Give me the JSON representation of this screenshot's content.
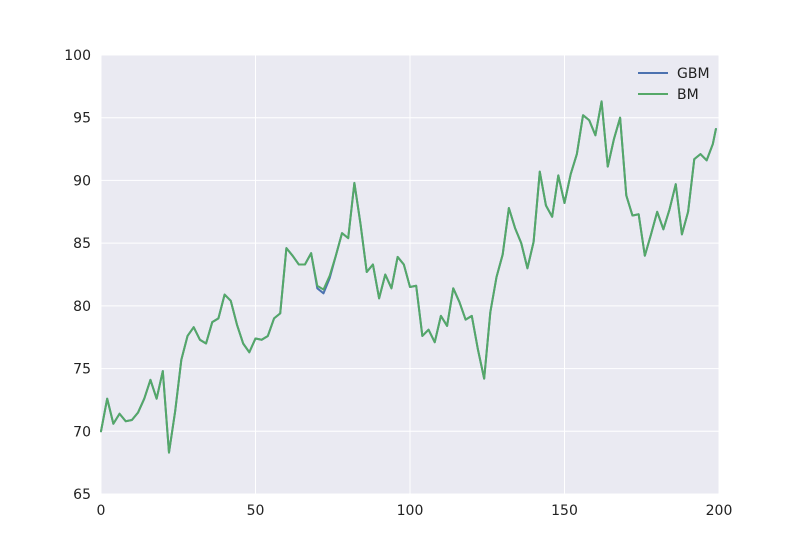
{
  "chart_data": {
    "type": "line",
    "title": "",
    "xlabel": "",
    "ylabel": "",
    "xlim": [
      0,
      200
    ],
    "ylim": [
      65,
      100
    ],
    "xticks": [
      0,
      50,
      100,
      150,
      200
    ],
    "yticks": [
      65,
      70,
      75,
      80,
      85,
      90,
      95,
      100
    ],
    "xtick_labels": [
      "0",
      "50",
      "100",
      "150",
      "200"
    ],
    "ytick_labels": [
      "65",
      "70",
      "75",
      "80",
      "85",
      "90",
      "95",
      "100"
    ],
    "grid": true,
    "legend": {
      "placement": "top-right",
      "entries": [
        "GBM",
        "BM"
      ]
    },
    "series": [
      {
        "name": "GBM",
        "color": "#4C72B0",
        "x": [
          0,
          2,
          4,
          6,
          8,
          10,
          12,
          14,
          16,
          18,
          20,
          22,
          24,
          26,
          28,
          30,
          32,
          34,
          36,
          38,
          40,
          42,
          44,
          46,
          48,
          50,
          52,
          54,
          56,
          58,
          60,
          62,
          64,
          66,
          68,
          70,
          72,
          74,
          76,
          78,
          80,
          82,
          84,
          86,
          88,
          90,
          92,
          94,
          96,
          98,
          100,
          102,
          104,
          106,
          108,
          110,
          112,
          114,
          116,
          118,
          120,
          122,
          124,
          126,
          128,
          130,
          132,
          134,
          136,
          138,
          140,
          142,
          144,
          146,
          148,
          150,
          152,
          154,
          156,
          158,
          160,
          162,
          164,
          166,
          168,
          170,
          172,
          174,
          176,
          178,
          180,
          182,
          184,
          186,
          188,
          190,
          192,
          194,
          196,
          198,
          199
        ],
        "y": [
          70.0,
          72.6,
          70.6,
          71.4,
          70.8,
          70.9,
          71.5,
          72.6,
          74.1,
          72.6,
          74.8,
          68.3,
          71.6,
          75.7,
          77.6,
          78.3,
          77.3,
          77.0,
          78.7,
          79.0,
          80.9,
          80.4,
          78.5,
          77.0,
          76.3,
          77.4,
          77.3,
          77.6,
          79.0,
          79.4,
          84.6,
          84.0,
          83.3,
          83.3,
          84.2,
          81.4,
          81.0,
          82.2,
          84.0,
          85.8,
          85.4,
          89.8,
          86.5,
          82.7,
          83.3,
          80.6,
          82.5,
          81.4,
          83.9,
          83.3,
          81.5,
          81.6,
          77.6,
          78.1,
          77.1,
          79.2,
          78.4,
          81.4,
          80.3,
          78.9,
          79.2,
          76.5,
          74.2,
          79.5,
          82.3,
          84.1,
          87.8,
          86.2,
          85.0,
          83.0,
          85.1,
          90.7,
          88.0,
          87.1,
          90.4,
          88.2,
          90.5,
          92.1,
          95.2,
          94.8,
          93.6,
          96.3,
          91.1,
          93.3,
          95.0,
          88.8,
          87.2,
          87.3,
          84.0,
          85.7,
          87.5,
          86.1,
          87.7,
          89.7,
          85.7,
          87.5,
          91.7,
          92.1,
          91.6,
          92.9,
          94.1
        ]
      },
      {
        "name": "BM",
        "color": "#55A868",
        "x": [
          0,
          2,
          4,
          6,
          8,
          10,
          12,
          14,
          16,
          18,
          20,
          22,
          24,
          26,
          28,
          30,
          32,
          34,
          36,
          38,
          40,
          42,
          44,
          46,
          48,
          50,
          52,
          54,
          56,
          58,
          60,
          62,
          64,
          66,
          68,
          70,
          72,
          74,
          76,
          78,
          80,
          82,
          84,
          86,
          88,
          90,
          92,
          94,
          96,
          98,
          100,
          102,
          104,
          106,
          108,
          110,
          112,
          114,
          116,
          118,
          120,
          122,
          124,
          126,
          128,
          130,
          132,
          134,
          136,
          138,
          140,
          142,
          144,
          146,
          148,
          150,
          152,
          154,
          156,
          158,
          160,
          162,
          164,
          166,
          168,
          170,
          172,
          174,
          176,
          178,
          180,
          182,
          184,
          186,
          188,
          190,
          192,
          194,
          196,
          198,
          199
        ],
        "y": [
          70.0,
          72.6,
          70.6,
          71.4,
          70.8,
          70.9,
          71.5,
          72.6,
          74.1,
          72.6,
          74.8,
          68.3,
          71.6,
          75.7,
          77.6,
          78.3,
          77.3,
          77.0,
          78.7,
          79.0,
          80.9,
          80.4,
          78.5,
          77.0,
          76.3,
          77.4,
          77.3,
          77.6,
          79.0,
          79.4,
          84.6,
          84.0,
          83.3,
          83.3,
          84.2,
          81.6,
          81.3,
          82.4,
          84.0,
          85.8,
          85.4,
          89.8,
          86.5,
          82.7,
          83.3,
          80.6,
          82.5,
          81.4,
          83.9,
          83.3,
          81.5,
          81.6,
          77.6,
          78.1,
          77.1,
          79.2,
          78.4,
          81.4,
          80.3,
          78.9,
          79.2,
          76.5,
          74.2,
          79.5,
          82.3,
          84.1,
          87.8,
          86.2,
          85.0,
          83.0,
          85.1,
          90.7,
          88.0,
          87.1,
          90.4,
          88.2,
          90.5,
          92.1,
          95.2,
          94.8,
          93.6,
          96.3,
          91.1,
          93.3,
          95.0,
          88.8,
          87.2,
          87.3,
          84.0,
          85.7,
          87.5,
          86.1,
          87.7,
          89.7,
          85.7,
          87.5,
          91.7,
          92.1,
          91.6,
          92.9,
          94.1
        ]
      }
    ]
  }
}
